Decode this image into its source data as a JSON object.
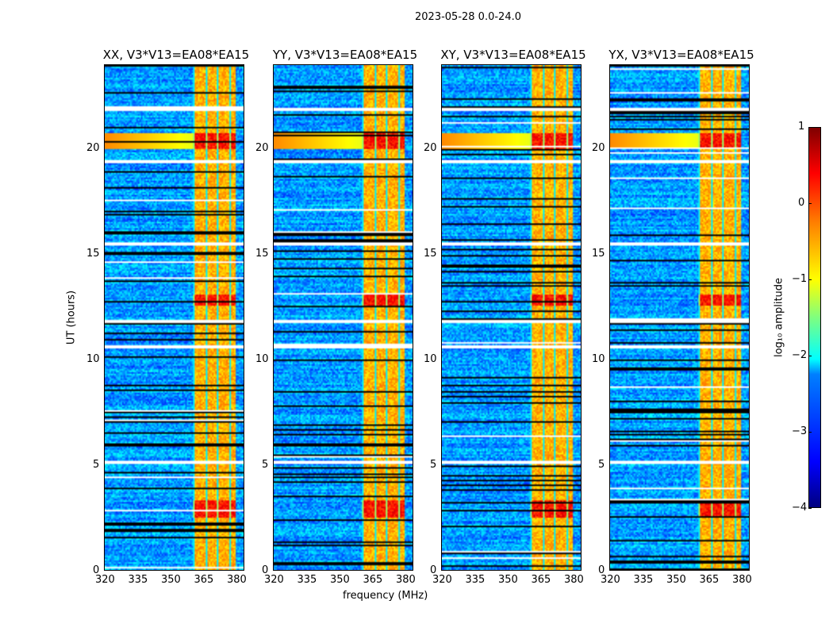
{
  "suptitle": "2023-05-28 0.0-24.0",
  "chart_data": {
    "type": "heatmap",
    "title": "2023-05-28 0.0-24.0",
    "xlabel": "frequency (MHz)",
    "ylabel": "UT (hours)",
    "xlim": [
      320,
      384
    ],
    "ylim": [
      0,
      24
    ],
    "xticks": [
      "320",
      "335",
      "350",
      "365",
      "380"
    ],
    "yticks": [
      "0",
      "5",
      "10",
      "15",
      "20"
    ],
    "panels": [
      {
        "title": "XX, V3*V13=EA08*EA15"
      },
      {
        "title": "YY, V3*V13=EA08*EA15"
      },
      {
        "title": "XY, V3*V13=EA08*EA15"
      },
      {
        "title": "YX, V3*V13=EA08*EA15"
      }
    ],
    "rfi_band_mhz": [
      361,
      380
    ],
    "strong_rfi_ut_hours": [
      [
        20.0,
        20.8
      ],
      [
        12.6,
        13.1
      ],
      [
        2.5,
        3.3
      ]
    ],
    "flagged_ut_hours": [
      [
        21.85,
        22.0
      ],
      [
        19.35,
        19.45
      ],
      [
        15.4,
        15.6
      ],
      [
        11.75,
        11.85
      ],
      [
        10.5,
        10.65
      ],
      [
        5.05,
        5.2
      ]
    ],
    "background_log10_amplitude": -2.6,
    "colorbar": {
      "label": "log₁₀ amplitude",
      "range": [
        -4,
        1
      ],
      "ticks": [
        "1",
        "0",
        "−1",
        "−2",
        "−3",
        "−4"
      ],
      "colormap": "jet"
    }
  }
}
